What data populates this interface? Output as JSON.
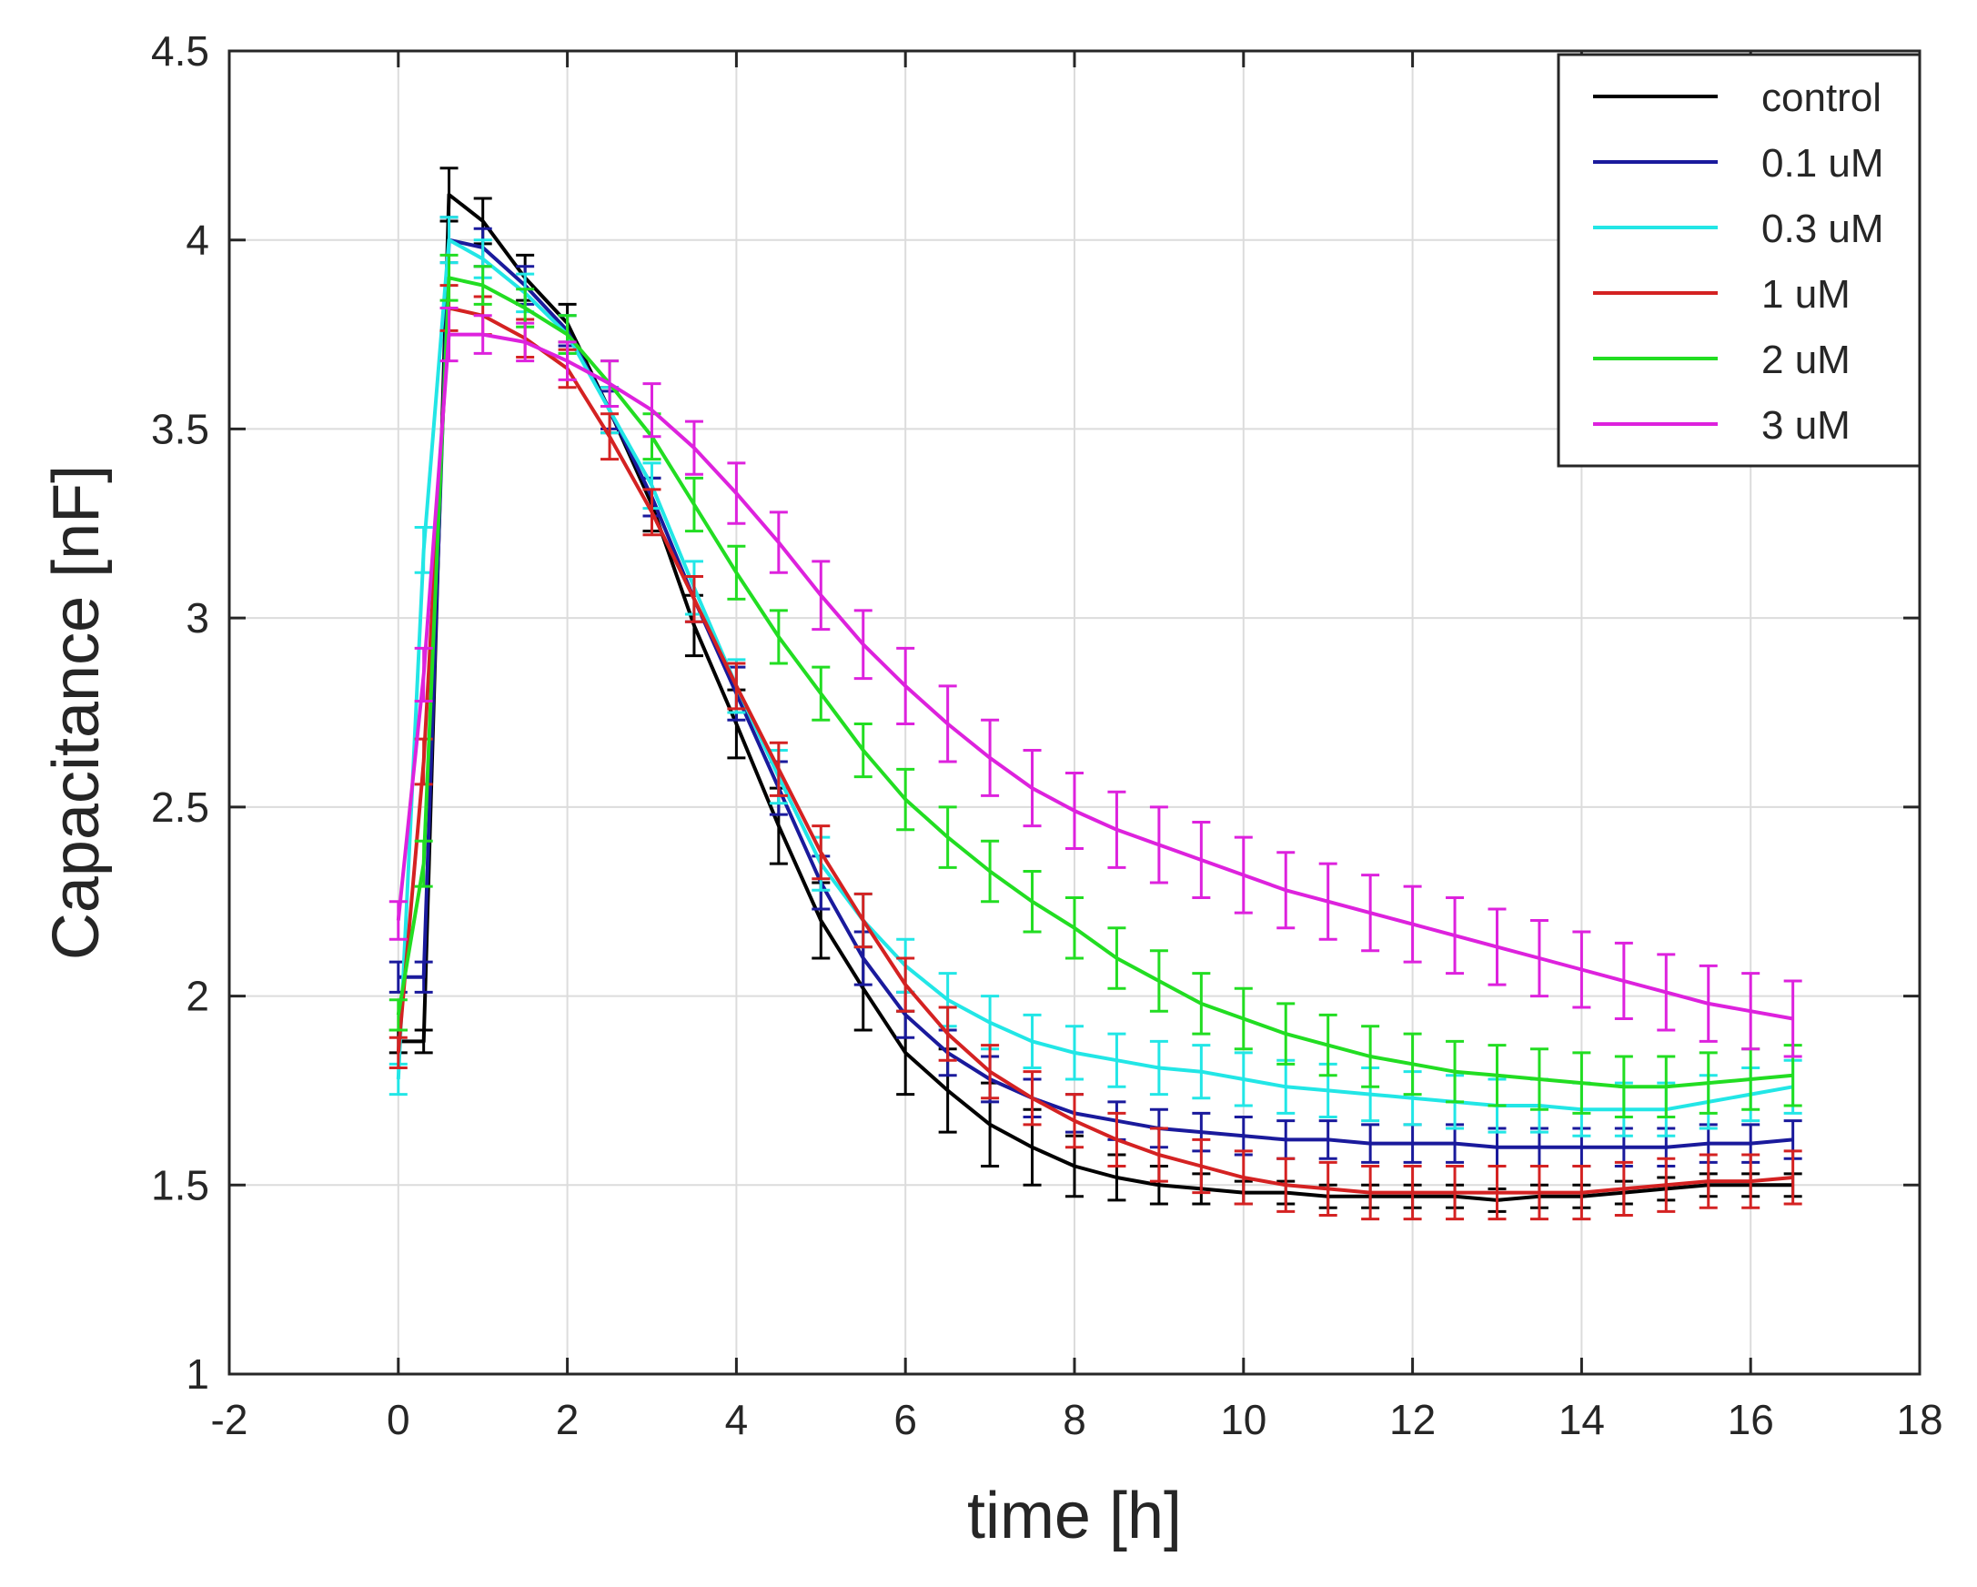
{
  "chart_data": {
    "type": "line",
    "title": "",
    "xlabel": "time [h]",
    "ylabel": "Capacitance [nF]",
    "xlim": [
      -2,
      18
    ],
    "ylim": [
      1,
      4.5
    ],
    "xticks": [
      "-2",
      "0",
      "2",
      "4",
      "6",
      "8",
      "10",
      "12",
      "14",
      "16",
      "18"
    ],
    "yticks": [
      "1",
      "1.5",
      "2",
      "2.5",
      "3",
      "3.5",
      "4",
      "4.5"
    ],
    "grid": true,
    "legend_position": "top-right",
    "error_bars": true,
    "series": [
      {
        "name": "control",
        "color": "#000000",
        "x": [
          0,
          0.3,
          0.6,
          1,
          1.5,
          2,
          2.5,
          3,
          3.5,
          4,
          4.5,
          5,
          5.5,
          6,
          6.5,
          7,
          7.5,
          8,
          8.5,
          9,
          9.5,
          10,
          10.5,
          11,
          11.5,
          12,
          12.5,
          13,
          13.5,
          14,
          14.5,
          15,
          15.5,
          16,
          16.5
        ],
        "y": [
          1.88,
          1.88,
          4.12,
          4.05,
          3.9,
          3.78,
          3.55,
          3.3,
          2.98,
          2.72,
          2.45,
          2.2,
          2.02,
          1.85,
          1.75,
          1.66,
          1.6,
          1.55,
          1.52,
          1.5,
          1.49,
          1.48,
          1.48,
          1.47,
          1.47,
          1.47,
          1.47,
          1.46,
          1.47,
          1.47,
          1.48,
          1.49,
          1.5,
          1.5,
          1.5
        ],
        "err": [
          0.03,
          0.03,
          0.07,
          0.06,
          0.06,
          0.05,
          0.06,
          0.07,
          0.08,
          0.09,
          0.1,
          0.1,
          0.11,
          0.11,
          0.11,
          0.11,
          0.1,
          0.08,
          0.06,
          0.05,
          0.04,
          0.03,
          0.03,
          0.03,
          0.03,
          0.03,
          0.03,
          0.03,
          0.03,
          0.03,
          0.03,
          0.03,
          0.03,
          0.03,
          0.03
        ]
      },
      {
        "name": "0.1 uM",
        "color": "#1a1a9c",
        "x": [
          0,
          0.3,
          0.6,
          1,
          1.5,
          2,
          2.5,
          3,
          3.5,
          4,
          4.5,
          5,
          5.5,
          6,
          6.5,
          7,
          7.5,
          8,
          8.5,
          9,
          9.5,
          10,
          10.5,
          11,
          11.5,
          12,
          12.5,
          13,
          13.5,
          14,
          14.5,
          15,
          15.5,
          16,
          16.5
        ],
        "y": [
          2.05,
          2.05,
          4.0,
          3.98,
          3.88,
          3.76,
          3.55,
          3.32,
          3.05,
          2.8,
          2.55,
          2.3,
          2.1,
          1.95,
          1.85,
          1.78,
          1.73,
          1.69,
          1.67,
          1.65,
          1.64,
          1.63,
          1.62,
          1.62,
          1.61,
          1.61,
          1.61,
          1.6,
          1.6,
          1.6,
          1.6,
          1.6,
          1.61,
          1.61,
          1.62
        ],
        "err": [
          0.04,
          0.04,
          0.06,
          0.05,
          0.05,
          0.04,
          0.05,
          0.05,
          0.06,
          0.07,
          0.07,
          0.07,
          0.07,
          0.06,
          0.06,
          0.06,
          0.05,
          0.05,
          0.05,
          0.05,
          0.05,
          0.05,
          0.05,
          0.05,
          0.05,
          0.05,
          0.05,
          0.05,
          0.05,
          0.05,
          0.05,
          0.05,
          0.05,
          0.05,
          0.05
        ]
      },
      {
        "name": "0.3 uM",
        "color": "#22e6e6",
        "x": [
          0,
          0.3,
          0.6,
          1,
          1.5,
          2,
          2.5,
          3,
          3.5,
          4,
          4.5,
          5,
          5.5,
          6,
          6.5,
          7,
          7.5,
          8,
          8.5,
          9,
          9.5,
          10,
          10.5,
          11,
          11.5,
          12,
          12.5,
          13,
          13.5,
          14,
          14.5,
          15,
          15.5,
          16,
          16.5
        ],
        "y": [
          1.78,
          3.18,
          4.0,
          3.95,
          3.86,
          3.75,
          3.55,
          3.35,
          3.08,
          2.82,
          2.58,
          2.35,
          2.2,
          2.08,
          1.99,
          1.93,
          1.88,
          1.85,
          1.83,
          1.81,
          1.8,
          1.78,
          1.76,
          1.75,
          1.74,
          1.73,
          1.72,
          1.71,
          1.71,
          1.7,
          1.7,
          1.7,
          1.72,
          1.74,
          1.76
        ],
        "err": [
          0.04,
          0.06,
          0.06,
          0.05,
          0.05,
          0.05,
          0.06,
          0.06,
          0.07,
          0.07,
          0.07,
          0.07,
          0.07,
          0.07,
          0.07,
          0.07,
          0.07,
          0.07,
          0.07,
          0.07,
          0.07,
          0.07,
          0.07,
          0.07,
          0.07,
          0.07,
          0.07,
          0.07,
          0.07,
          0.07,
          0.07,
          0.07,
          0.07,
          0.07,
          0.07
        ]
      },
      {
        "name": "1 uM",
        "color": "#d42222",
        "x": [
          0,
          0.3,
          0.6,
          1,
          1.5,
          2,
          2.5,
          3,
          3.5,
          4,
          4.5,
          5,
          5.5,
          6,
          6.5,
          7,
          7.5,
          8,
          8.5,
          9,
          9.5,
          10,
          10.5,
          11,
          11.5,
          12,
          12.5,
          13,
          13.5,
          14,
          14.5,
          15,
          15.5,
          16,
          16.5
        ],
        "y": [
          1.85,
          2.62,
          3.82,
          3.8,
          3.74,
          3.66,
          3.48,
          3.28,
          3.05,
          2.82,
          2.6,
          2.38,
          2.2,
          2.03,
          1.9,
          1.8,
          1.73,
          1.67,
          1.62,
          1.58,
          1.55,
          1.52,
          1.5,
          1.49,
          1.48,
          1.48,
          1.48,
          1.48,
          1.48,
          1.48,
          1.49,
          1.5,
          1.51,
          1.51,
          1.52
        ],
        "err": [
          0.04,
          0.06,
          0.06,
          0.05,
          0.05,
          0.05,
          0.06,
          0.06,
          0.06,
          0.06,
          0.07,
          0.07,
          0.07,
          0.07,
          0.07,
          0.07,
          0.07,
          0.07,
          0.07,
          0.07,
          0.07,
          0.07,
          0.07,
          0.07,
          0.07,
          0.07,
          0.07,
          0.07,
          0.07,
          0.07,
          0.07,
          0.07,
          0.07,
          0.07,
          0.07
        ]
      },
      {
        "name": "2 uM",
        "color": "#22dd22",
        "x": [
          0,
          0.3,
          0.6,
          1,
          1.5,
          2,
          2.5,
          3,
          3.5,
          4,
          4.5,
          5,
          5.5,
          6,
          6.5,
          7,
          7.5,
          8,
          8.5,
          9,
          9.5,
          10,
          10.5,
          11,
          11.5,
          12,
          12.5,
          13,
          13.5,
          14,
          14.5,
          15,
          15.5,
          16,
          16.5
        ],
        "y": [
          1.95,
          2.35,
          3.9,
          3.88,
          3.82,
          3.75,
          3.62,
          3.48,
          3.3,
          3.12,
          2.95,
          2.8,
          2.65,
          2.52,
          2.42,
          2.33,
          2.25,
          2.18,
          2.1,
          2.04,
          1.98,
          1.94,
          1.9,
          1.87,
          1.84,
          1.82,
          1.8,
          1.79,
          1.78,
          1.77,
          1.76,
          1.76,
          1.77,
          1.78,
          1.79
        ],
        "err": [
          0.04,
          0.06,
          0.06,
          0.05,
          0.05,
          0.05,
          0.06,
          0.06,
          0.07,
          0.07,
          0.07,
          0.07,
          0.07,
          0.08,
          0.08,
          0.08,
          0.08,
          0.08,
          0.08,
          0.08,
          0.08,
          0.08,
          0.08,
          0.08,
          0.08,
          0.08,
          0.08,
          0.08,
          0.08,
          0.08,
          0.08,
          0.08,
          0.08,
          0.08,
          0.08
        ]
      },
      {
        "name": "3 uM",
        "color": "#dd22dd",
        "x": [
          0,
          0.3,
          0.6,
          1,
          1.5,
          2,
          2.5,
          3,
          3.5,
          4,
          4.5,
          5,
          5.5,
          6,
          6.5,
          7,
          7.5,
          8,
          8.5,
          9,
          9.5,
          10,
          10.5,
          11,
          11.5,
          12,
          12.5,
          13,
          13.5,
          14,
          14.5,
          15,
          15.5,
          16,
          16.5
        ],
        "y": [
          2.2,
          2.85,
          3.75,
          3.75,
          3.73,
          3.68,
          3.62,
          3.55,
          3.45,
          3.33,
          3.2,
          3.06,
          2.93,
          2.82,
          2.72,
          2.63,
          2.55,
          2.49,
          2.44,
          2.4,
          2.36,
          2.32,
          2.28,
          2.25,
          2.22,
          2.19,
          2.16,
          2.13,
          2.1,
          2.07,
          2.04,
          2.01,
          1.98,
          1.96,
          1.94
        ],
        "err": [
          0.05,
          0.07,
          0.07,
          0.05,
          0.05,
          0.05,
          0.06,
          0.07,
          0.07,
          0.08,
          0.08,
          0.09,
          0.09,
          0.1,
          0.1,
          0.1,
          0.1,
          0.1,
          0.1,
          0.1,
          0.1,
          0.1,
          0.1,
          0.1,
          0.1,
          0.1,
          0.1,
          0.1,
          0.1,
          0.1,
          0.1,
          0.1,
          0.1,
          0.1,
          0.1
        ]
      }
    ]
  }
}
